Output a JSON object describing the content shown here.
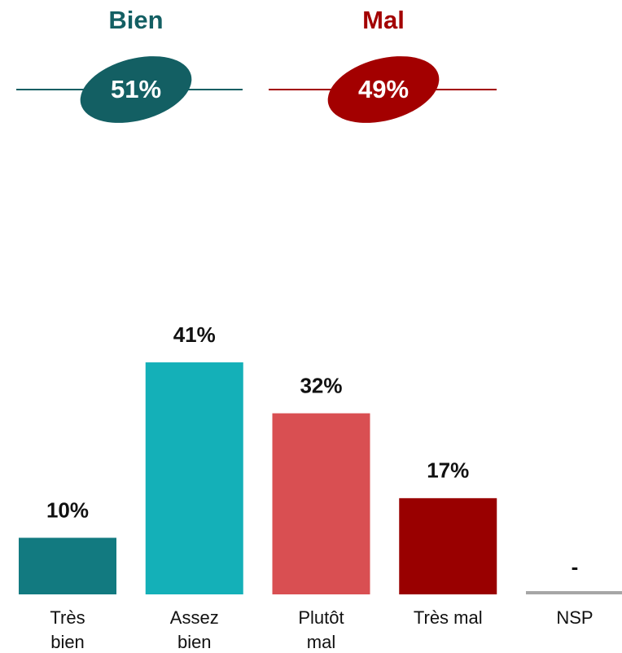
{
  "chart_data": {
    "type": "bar",
    "summary": [
      {
        "label": "Bien",
        "value": 51,
        "value_label": "51%",
        "color": "#135f63"
      },
      {
        "label": "Mal",
        "value": 49,
        "value_label": "49%",
        "color": "#a30000"
      }
    ],
    "categories": [
      "Très bien",
      "Assez bien",
      "Plutôt mal",
      "Très mal",
      "NSP"
    ],
    "values": [
      10,
      41,
      32,
      17,
      0
    ],
    "value_labels": [
      "10%",
      "41%",
      "32%",
      "17%",
      "-"
    ],
    "colors": [
      "#127a80",
      "#14b0b8",
      "#d94f52",
      "#990000",
      "#a6a6a6"
    ]
  }
}
